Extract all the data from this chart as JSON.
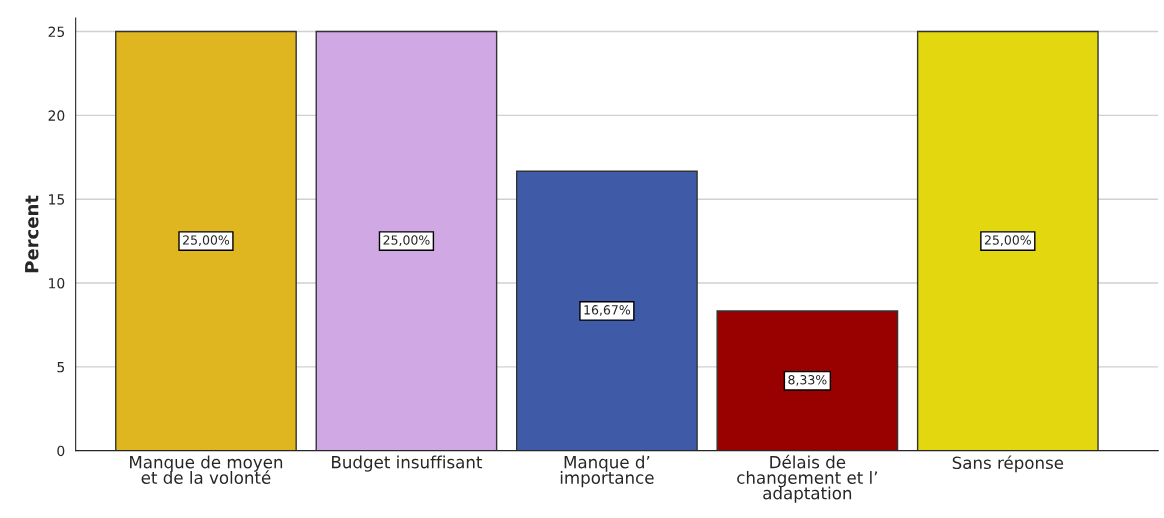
{
  "chart_data": {
    "type": "bar",
    "ylabel": "Percent",
    "categories": [
      "Manque de moyen\net de la volonté",
      "Budget insuffisant",
      "Manque d’\nimportance",
      "Délais de\nchangement et l’\nadaptation",
      "Sans réponse"
    ],
    "values": [
      25,
      25,
      16.67,
      8.33,
      25
    ],
    "colors": [
      "#e0b620",
      "#d0a8e4",
      "#3f5ba8",
      "#990000",
      "#e3d80f"
    ],
    "value_labels": [
      "25,00%",
      "25,00%",
      "16,67%",
      "8,33%",
      "25,00%"
    ],
    "ylim": [
      0,
      25.8
    ],
    "yticks": [
      0,
      5,
      10,
      15,
      20,
      25
    ],
    "grid": "y",
    "legend": false
  }
}
